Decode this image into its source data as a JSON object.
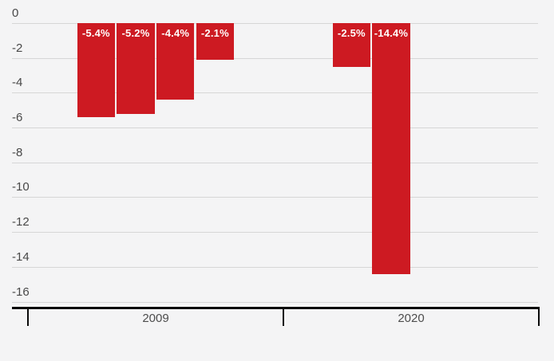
{
  "colors": {
    "background": "#f4f4f5",
    "bar": "#cd1a22",
    "bar_label_text": "#ffffff",
    "gridline": "#d6d6d6",
    "axis_line": "#0a0a0a",
    "tick_label_text": "#484848"
  },
  "chart_data": {
    "type": "bar",
    "unit": "%",
    "grid": true,
    "legend": false,
    "y_axis": {
      "range": [
        0,
        -16
      ],
      "tick_step": 2,
      "ticks": [
        0,
        -2,
        -4,
        -6,
        -8,
        -10,
        -12,
        -14,
        -16
      ],
      "tick_labels": [
        "0",
        "-2",
        "-4",
        "-6",
        "-8",
        "-10",
        "-12",
        "-14",
        "-16"
      ]
    },
    "categories": [
      "2009",
      "2020"
    ],
    "groups": [
      {
        "label": "2009",
        "bars": [
          {
            "value": -5.4,
            "label": "-5.4%"
          },
          {
            "value": -5.2,
            "label": "-5.2%"
          },
          {
            "value": -4.4,
            "label": "-4.4%"
          },
          {
            "value": -2.1,
            "label": "-2.1%"
          }
        ]
      },
      {
        "label": "2020",
        "bars": [
          {
            "value": -2.5,
            "label": "-2.5%"
          },
          {
            "value": -14.4,
            "label": "-14.4%"
          }
        ]
      }
    ]
  }
}
